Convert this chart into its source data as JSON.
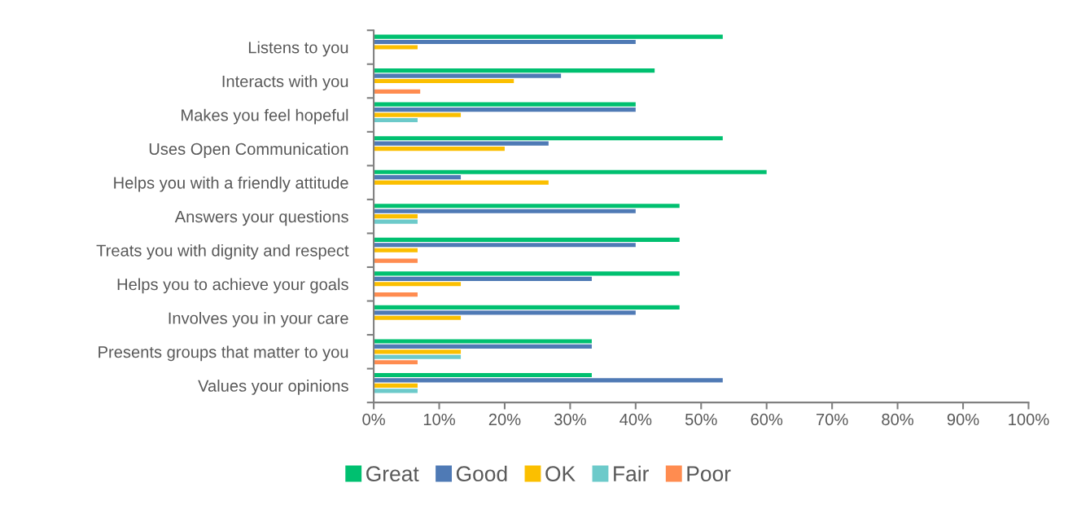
{
  "chart_data": {
    "type": "bar",
    "orientation": "horizontal",
    "categories": [
      "Listens to you",
      "Interacts with you",
      "Makes you feel hopeful",
      "Uses Open Communication",
      "Helps you with a friendly attitude",
      "Answers your questions",
      "Treats you with dignity and respect",
      "Helps you to achieve your goals",
      "Involves you in your care",
      "Presents groups that matter to you",
      "Values your opinions"
    ],
    "series": [
      {
        "name": "Great",
        "color": "#00c070",
        "values": [
          53.3,
          42.9,
          40,
          53.3,
          60,
          46.7,
          46.7,
          46.7,
          46.7,
          33.3,
          33.3
        ]
      },
      {
        "name": "Good",
        "color": "#4f7ab5",
        "values": [
          40,
          28.6,
          40,
          26.7,
          13.3,
          40,
          40,
          33.3,
          40,
          33.3,
          53.3
        ]
      },
      {
        "name": "OK",
        "color": "#fbbf00",
        "values": [
          6.7,
          21.4,
          13.3,
          20,
          26.7,
          6.7,
          6.7,
          13.3,
          13.3,
          13.3,
          6.7
        ]
      },
      {
        "name": "Fair",
        "color": "#6ccaca",
        "values": [
          0,
          0,
          6.7,
          0,
          0,
          6.7,
          0,
          0,
          0,
          13.3,
          6.7
        ]
      },
      {
        "name": "Poor",
        "color": "#ff8c50",
        "values": [
          0,
          7.1,
          0,
          0,
          0,
          0,
          6.7,
          6.7,
          0,
          6.7,
          0
        ]
      }
    ],
    "xlim": [
      0,
      100
    ],
    "xticks": [
      {
        "value": 0,
        "label": "0%"
      },
      {
        "value": 10,
        "label": "10%"
      },
      {
        "value": 20,
        "label": "20%"
      },
      {
        "value": 30,
        "label": "30%"
      },
      {
        "value": 40,
        "label": "40%"
      },
      {
        "value": 50,
        "label": "50%"
      },
      {
        "value": 60,
        "label": "60%"
      },
      {
        "value": 70,
        "label": "70%"
      },
      {
        "value": 80,
        "label": "80%"
      },
      {
        "value": 90,
        "label": "90%"
      },
      {
        "value": 100,
        "label": "100%"
      }
    ],
    "grid": false,
    "legend": "bottom"
  }
}
